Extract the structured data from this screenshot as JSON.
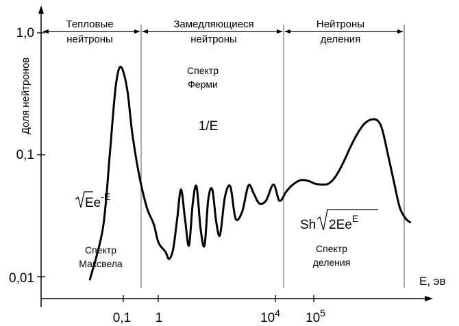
{
  "chart_data": {
    "type": "line",
    "title": "",
    "xlabel": "E, эв",
    "ylabel": "Доля нейтронов",
    "x_scale": "log",
    "y_scale": "log",
    "y_ticks": [
      {
        "value": 1.0,
        "label": "1,0"
      },
      {
        "value": 0.1,
        "label": "0,1"
      },
      {
        "value": 0.01,
        "label": "0,01"
      }
    ],
    "x_ticks": [
      {
        "value": 0.1,
        "label": "0,1"
      },
      {
        "value": 1,
        "label": "1"
      },
      {
        "value": 10000,
        "base": "10",
        "exp": "4"
      },
      {
        "value": 100000,
        "base": "10",
        "exp": "5"
      }
    ],
    "regions": [
      {
        "line1": "Тепловые",
        "line2": "нейтроны"
      },
      {
        "line1": "Замедляющиеся",
        "line2": "нейтроны"
      },
      {
        "line1": "Нейтроны",
        "line2": "деления"
      }
    ],
    "annotations": {
      "fermi_line1": "Спектр",
      "fermi_line2": "Ферми",
      "inv_e": "1/E",
      "maxwell_formula_base": "Ee",
      "maxwell_formula_exp": "-E",
      "maxwell_line1": "Спектр",
      "maxwell_line2": "Максвела",
      "fission_formula_prefix": "Sh",
      "fission_formula_body": "2Ee",
      "fission_formula_exp": "E",
      "fission_line1": "Спектр",
      "fission_line2": "деления"
    },
    "series": [
      {
        "x": [
          0.014,
          0.03,
          0.045,
          0.055,
          0.065,
          0.08,
          0.1,
          0.13,
          0.17,
          0.25,
          0.4,
          0.6,
          0.8,
          1.2,
          1.5,
          1.9,
          2.4,
          3,
          3.8,
          4.8,
          6,
          7.5,
          9.5,
          12,
          15,
          19,
          24,
          30,
          40,
          55,
          75,
          110,
          160,
          220,
          300,
          450,
          700,
          1000,
          1500,
          2200,
          3500,
          5500,
          8000,
          12000,
          18000,
          27000,
          42000,
          65000,
          100000,
          150000,
          230000,
          330000,
          430000,
          600000,
          850000,
          1200000,
          1700000,
          2200000
        ],
        "y": [
          0.0095,
          0.025,
          0.1,
          0.22,
          0.38,
          0.52,
          0.48,
          0.32,
          0.15,
          0.07,
          0.037,
          0.027,
          0.019,
          0.016,
          0.014,
          0.017,
          0.03,
          0.052,
          0.03,
          0.018,
          0.04,
          0.055,
          0.025,
          0.018,
          0.043,
          0.052,
          0.028,
          0.022,
          0.045,
          0.055,
          0.03,
          0.034,
          0.056,
          0.048,
          0.04,
          0.042,
          0.057,
          0.042,
          0.05,
          0.057,
          0.062,
          0.061,
          0.058,
          0.057,
          0.058,
          0.066,
          0.085,
          0.115,
          0.15,
          0.18,
          0.195,
          0.19,
          0.16,
          0.1,
          0.06,
          0.037,
          0.03,
          0.028
        ]
      }
    ]
  }
}
